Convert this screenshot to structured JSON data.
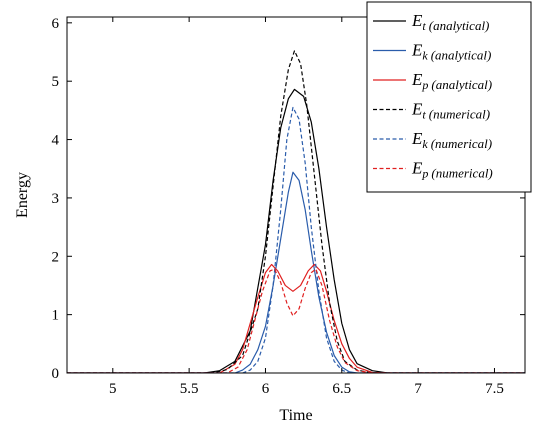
{
  "chart_data": {
    "type": "line",
    "title": "",
    "xlabel": "Time",
    "ylabel": "Energy",
    "xlim": [
      4.7,
      7.7
    ],
    "ylim": [
      0,
      6.1
    ],
    "xticks": [
      5,
      5.5,
      6,
      6.5,
      7,
      7.5
    ],
    "xtick_labels": [
      "5",
      "5.5",
      "6",
      "6.5",
      "7",
      "7.5"
    ],
    "yticks": [
      0,
      1,
      2,
      3,
      4,
      5,
      6
    ],
    "ytick_labels": [
      "0",
      "1",
      "2",
      "3",
      "4",
      "5",
      "6"
    ],
    "grid": false,
    "legend_position": "top-right",
    "series": [
      {
        "name": "E_t (analytical)",
        "symbol": "E",
        "sub": "t",
        "qualifier": "(analytical)",
        "color": "#000000",
        "dash": "solid",
        "points": [
          [
            4.7,
            0
          ],
          [
            5.6,
            0
          ],
          [
            5.7,
            0.04
          ],
          [
            5.8,
            0.2
          ],
          [
            5.9,
            0.72
          ],
          [
            6.0,
            2.2
          ],
          [
            6.05,
            3.3
          ],
          [
            6.1,
            4.2
          ],
          [
            6.15,
            4.7
          ],
          [
            6.19,
            4.86
          ],
          [
            6.25,
            4.74
          ],
          [
            6.3,
            4.3
          ],
          [
            6.35,
            3.5
          ],
          [
            6.4,
            2.5
          ],
          [
            6.45,
            1.6
          ],
          [
            6.5,
            0.85
          ],
          [
            6.55,
            0.4
          ],
          [
            6.6,
            0.16
          ],
          [
            6.7,
            0.04
          ],
          [
            6.8,
            0
          ],
          [
            7.7,
            0
          ]
        ]
      },
      {
        "name": "E_k (analytical)",
        "symbol": "E",
        "sub": "k",
        "qualifier": "(analytical)",
        "color": "#2a5cab",
        "dash": "solid",
        "points": [
          [
            4.7,
            0
          ],
          [
            5.8,
            0
          ],
          [
            5.85,
            0.05
          ],
          [
            5.9,
            0.15
          ],
          [
            5.95,
            0.4
          ],
          [
            6.0,
            0.8
          ],
          [
            6.05,
            1.5
          ],
          [
            6.1,
            2.3
          ],
          [
            6.15,
            3.1
          ],
          [
            6.18,
            3.44
          ],
          [
            6.22,
            3.3
          ],
          [
            6.26,
            2.8
          ],
          [
            6.3,
            2.1
          ],
          [
            6.35,
            1.3
          ],
          [
            6.4,
            0.7
          ],
          [
            6.45,
            0.3
          ],
          [
            6.5,
            0.1
          ],
          [
            6.55,
            0.02
          ],
          [
            6.6,
            0
          ],
          [
            7.7,
            0
          ]
        ]
      },
      {
        "name": "E_p (analytical)",
        "symbol": "E",
        "sub": "p",
        "qualifier": "(analytical)",
        "color": "#e02020",
        "dash": "solid",
        "points": [
          [
            4.7,
            0
          ],
          [
            5.7,
            0
          ],
          [
            5.8,
            0.15
          ],
          [
            5.85,
            0.4
          ],
          [
            5.9,
            0.85
          ],
          [
            5.95,
            1.3
          ],
          [
            6.0,
            1.72
          ],
          [
            6.04,
            1.86
          ],
          [
            6.08,
            1.75
          ],
          [
            6.13,
            1.5
          ],
          [
            6.18,
            1.4
          ],
          [
            6.23,
            1.5
          ],
          [
            6.28,
            1.75
          ],
          [
            6.32,
            1.86
          ],
          [
            6.36,
            1.75
          ],
          [
            6.4,
            1.4
          ],
          [
            6.45,
            0.9
          ],
          [
            6.5,
            0.5
          ],
          [
            6.55,
            0.25
          ],
          [
            6.6,
            0.1
          ],
          [
            6.7,
            0.01
          ],
          [
            6.8,
            0
          ],
          [
            7.7,
            0
          ]
        ]
      },
      {
        "name": "E_t (numerical)",
        "symbol": "E",
        "sub": "t",
        "qualifier": "(numerical)",
        "color": "#000000",
        "dash": "dashed",
        "points": [
          [
            4.7,
            0
          ],
          [
            5.65,
            0
          ],
          [
            5.75,
            0.06
          ],
          [
            5.85,
            0.3
          ],
          [
            5.95,
            1.1
          ],
          [
            6.0,
            2.0
          ],
          [
            6.05,
            3.2
          ],
          [
            6.1,
            4.4
          ],
          [
            6.15,
            5.2
          ],
          [
            6.19,
            5.52
          ],
          [
            6.23,
            5.3
          ],
          [
            6.27,
            4.6
          ],
          [
            6.32,
            3.4
          ],
          [
            6.37,
            2.2
          ],
          [
            6.42,
            1.2
          ],
          [
            6.47,
            0.55
          ],
          [
            6.52,
            0.2
          ],
          [
            6.6,
            0.05
          ],
          [
            6.7,
            0
          ],
          [
            7.7,
            0
          ]
        ]
      },
      {
        "name": "E_k (numerical)",
        "symbol": "E",
        "sub": "k",
        "qualifier": "(numerical)",
        "color": "#2a5cab",
        "dash": "dashed",
        "points": [
          [
            4.7,
            0
          ],
          [
            5.85,
            0
          ],
          [
            5.9,
            0.05
          ],
          [
            5.95,
            0.2
          ],
          [
            6.0,
            0.6
          ],
          [
            6.05,
            1.5
          ],
          [
            6.1,
            2.8
          ],
          [
            6.14,
            4.0
          ],
          [
            6.18,
            4.55
          ],
          [
            6.22,
            4.35
          ],
          [
            6.26,
            3.6
          ],
          [
            6.3,
            2.5
          ],
          [
            6.35,
            1.4
          ],
          [
            6.4,
            0.6
          ],
          [
            6.45,
            0.2
          ],
          [
            6.5,
            0.05
          ],
          [
            6.55,
            0
          ],
          [
            7.7,
            0
          ]
        ]
      },
      {
        "name": "E_p (numerical)",
        "symbol": "E",
        "sub": "p",
        "qualifier": "(numerical)",
        "color": "#e02020",
        "dash": "dashed",
        "points": [
          [
            4.7,
            0
          ],
          [
            5.75,
            0
          ],
          [
            5.82,
            0.1
          ],
          [
            5.88,
            0.4
          ],
          [
            5.93,
            0.9
          ],
          [
            5.98,
            1.4
          ],
          [
            6.03,
            1.75
          ],
          [
            6.06,
            1.78
          ],
          [
            6.1,
            1.55
          ],
          [
            6.14,
            1.2
          ],
          [
            6.18,
            0.98
          ],
          [
            6.22,
            1.1
          ],
          [
            6.26,
            1.45
          ],
          [
            6.3,
            1.72
          ],
          [
            6.33,
            1.78
          ],
          [
            6.37,
            1.5
          ],
          [
            6.42,
            0.9
          ],
          [
            6.47,
            0.45
          ],
          [
            6.52,
            0.18
          ],
          [
            6.6,
            0.04
          ],
          [
            6.7,
            0
          ],
          [
            7.7,
            0
          ]
        ]
      }
    ]
  }
}
